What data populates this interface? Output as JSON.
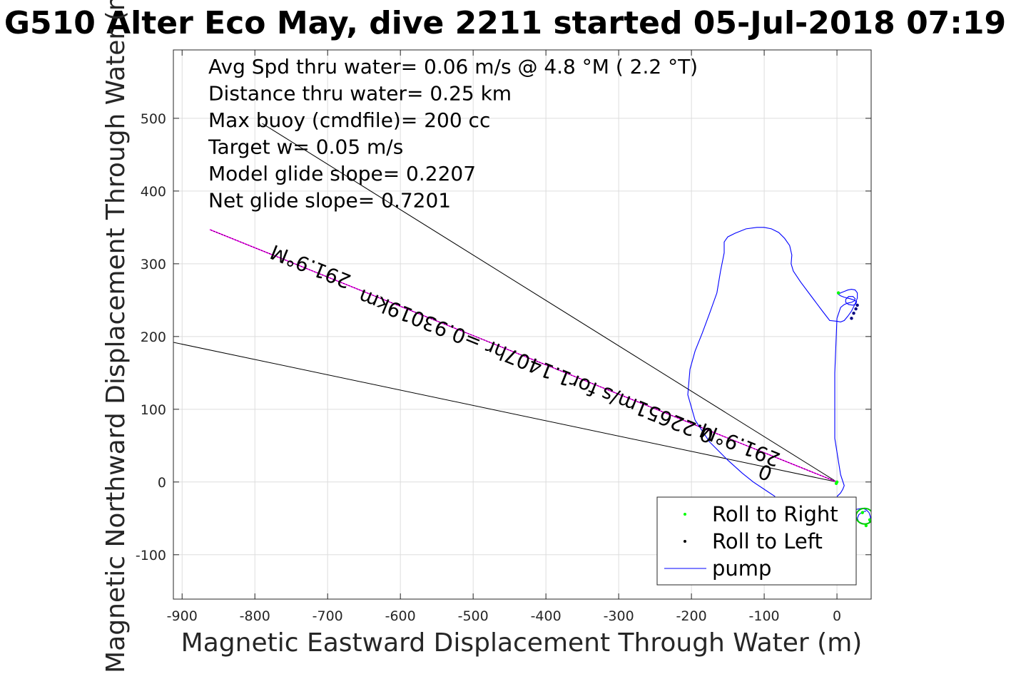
{
  "chart_data": {
    "type": "line",
    "title": "G510 Alter Eco May, dive 2211 started 05-Jul-2018 07:19",
    "xlabel": "Magnetic Eastward Displacement Through Water (m)",
    "ylabel": "Magnetic Northward Displacement Through Water (m)",
    "xlim": [
      -912,
      47
    ],
    "ylim": [
      -161,
      594
    ],
    "xticks": [
      -900,
      -800,
      -700,
      -600,
      -500,
      -400,
      -300,
      -200,
      -100,
      0
    ],
    "yticks": [
      -100,
      0,
      100,
      200,
      300,
      400,
      500
    ],
    "grid": true,
    "annotations": [
      "Avg Spd thru water=  0.06 m/s @   4.8 °M (  2.2 °T)",
      "Distance thru water=  0.25 km",
      "Max buoy (cmdfile)= 200 cc",
      "Target w= 0.05 m/s",
      "Model glide slope= 0.2207",
      "Net glide slope= 0.7201"
    ],
    "heading_lines": [
      {
        "name": "cone-upper",
        "x": [
          0,
          -790
        ],
        "y": [
          0,
          493
        ]
      },
      {
        "name": "cone-lower",
        "x": [
          0,
          -912
        ],
        "y": [
          0,
          192
        ]
      },
      {
        "name": "heading-center",
        "x": [
          0,
          -862
        ],
        "y": [
          0,
          347
        ]
      }
    ],
    "rotated_labels": [
      {
        "text": "291.9°M",
        "x": -720,
        "y": 305,
        "angle": 21.9
      },
      {
        "text": "0.22651m/s for1.1407hr =0.93019km",
        "x": -410,
        "y": 168,
        "angle": 21.9
      },
      {
        "text": "291.9°M",
        "x": -130,
        "y": 60,
        "angle": 21.9
      },
      {
        "text": "0",
        "x": -95,
        "y": 22,
        "angle": 21.9
      }
    ],
    "series": [
      {
        "name": "Roll to Right",
        "color": "#00ff00",
        "x": [
          -1,
          2,
          0,
          10,
          35,
          45,
          40
        ],
        "y": [
          -2,
          260,
          0,
          -42,
          -42,
          -52,
          -60
        ]
      },
      {
        "name": "Roll to Left",
        "color": "#000080",
        "x": [
          20,
          23,
          26,
          28
        ],
        "y": [
          225,
          232,
          238,
          243
        ]
      },
      {
        "name": "pump",
        "color": "#0000ff",
        "x": [
          -85,
          -100,
          -115,
          -130,
          -150,
          -175,
          -195,
          -205,
          -202,
          -195,
          -185,
          -175,
          -165,
          -160,
          -155,
          -155,
          -150,
          -140,
          -125,
          -110,
          -100,
          -90,
          -80,
          -72,
          -65,
          -62,
          -63,
          -60,
          -50,
          -35,
          -20,
          -10,
          0,
          5,
          10,
          15,
          20,
          25,
          28,
          28,
          25,
          20,
          15,
          10,
          5,
          2,
          5,
          10,
          18,
          24,
          27,
          26,
          22,
          16,
          12,
          12,
          16,
          22,
          25,
          24,
          20,
          15,
          10,
          5,
          0,
          -3,
          -3,
          5,
          10,
          8,
          5,
          0
        ],
        "y": [
          -20,
          -10,
          0,
          12,
          30,
          55,
          85,
          120,
          155,
          180,
          205,
          232,
          260,
          290,
          315,
          330,
          337,
          342,
          348,
          350,
          350,
          348,
          343,
          335,
          325,
          312,
          300,
          290,
          275,
          255,
          235,
          222,
          221,
          220,
          222,
          228,
          235,
          245,
          253,
          260,
          264,
          265,
          264,
          262,
          260,
          258,
          256,
          254,
          252,
          250,
          248,
          245,
          243,
          244,
          247,
          251,
          255,
          255,
          252,
          249,
          247,
          246,
          244,
          240,
          225,
          150,
          60,
          10,
          -5,
          -10,
          -15,
          -20
        ]
      },
      {
        "name": "pump-tail",
        "color": "#0000ff",
        "x": [
          0,
          5,
          10,
          15,
          20,
          25,
          30,
          35,
          40,
          44,
          46,
          46,
          44,
          40,
          35,
          30,
          28,
          30,
          35,
          40
        ],
        "y": [
          -25,
          -30,
          -33,
          -36,
          -38,
          -38,
          -37,
          -36,
          -38,
          -42,
          -48,
          -52,
          -56,
          -58,
          -57,
          -55,
          -50,
          -45,
          -41,
          -40
        ]
      }
    ],
    "legend": {
      "position": "bottom-right",
      "entries": [
        {
          "label": "Roll to Right",
          "marker": "dot",
          "color": "#00ff00"
        },
        {
          "label": "Roll to Left",
          "marker": "dot",
          "color": "#000000"
        },
        {
          "label": "pump",
          "marker": "line",
          "color": "#0000ff"
        }
      ]
    }
  }
}
